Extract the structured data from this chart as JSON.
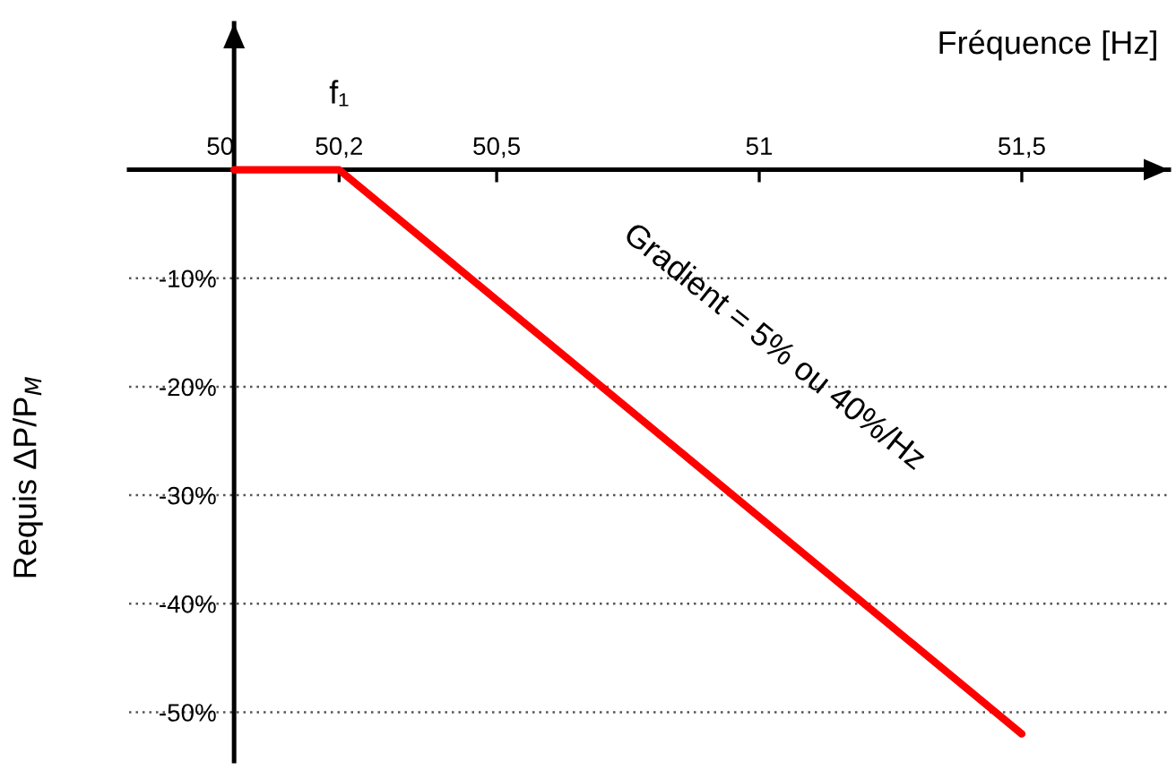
{
  "chart_data": {
    "type": "line",
    "xlabel": "Fréquence [Hz]",
    "ylabel": "Requis ΔP/P$_{M}$",
    "x": [
      50,
      50.2,
      51.5
    ],
    "series": [
      {
        "color": "#ff0000",
        "values": [
          0,
          0,
          -52
        ]
      }
    ],
    "xlim": [
      49.8,
      51.78
    ],
    "ylim": [
      -54.5,
      13.5
    ],
    "xticks": [
      50,
      {
        "value": 50.2,
        "label": "50,2"
      },
      {
        "value": 50.5,
        "label": "50,5"
      },
      51,
      {
        "value": 51.5,
        "label": "51,5"
      }
    ],
    "yticks": [
      {
        "value": -10,
        "label": "-10%"
      },
      {
        "value": -20,
        "label": "-20%"
      },
      {
        "value": -30,
        "label": "-30%"
      },
      {
        "value": -40,
        "label": "-40%"
      },
      {
        "value": -50,
        "label": "-50%"
      }
    ],
    "grid": "y",
    "line_style": "solid",
    "marker": "none",
    "annotations": [
      {
        "text": "f₁",
        "x": 50.2,
        "y": 0
      },
      "Gradient = 5% ou 40%/Hz"
    ]
  }
}
